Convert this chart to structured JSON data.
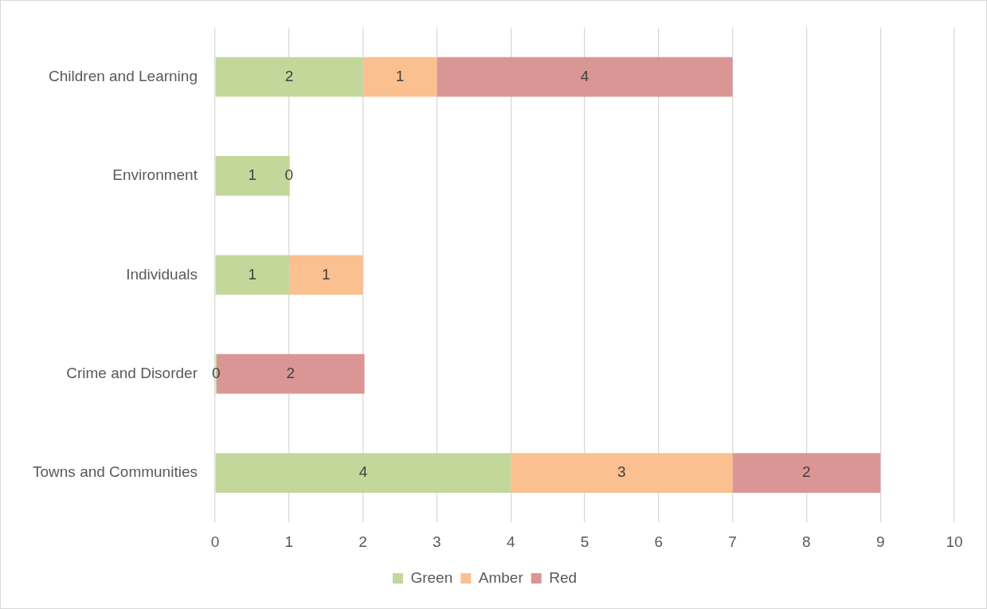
{
  "chart_data": {
    "type": "bar",
    "orientation": "horizontal",
    "stacked": true,
    "categories": [
      "Children and Learning",
      "Environment",
      "Individuals",
      "Crime and Disorder",
      "Towns and Communities"
    ],
    "series": [
      {
        "name": "Green",
        "color": "#c4d79b",
        "values": [
          2,
          1,
          1,
          0,
          4
        ],
        "value_labels": [
          "2",
          "1",
          "1",
          "0",
          "4"
        ]
      },
      {
        "name": "Amber",
        "color": "#fac090",
        "values": [
          1,
          0,
          1,
          null,
          3
        ],
        "value_labels": [
          "1",
          "0",
          "1",
          null,
          "3"
        ]
      },
      {
        "name": "Red",
        "color": "#da9694",
        "values": [
          4,
          null,
          null,
          2,
          2
        ],
        "value_labels": [
          "4",
          null,
          null,
          "2",
          "2"
        ]
      }
    ],
    "xlim": [
      0,
      10
    ],
    "xticks": [
      0,
      1,
      2,
      3,
      4,
      5,
      6,
      7,
      8,
      9,
      10
    ],
    "grid": "x",
    "legend": "bottom"
  }
}
